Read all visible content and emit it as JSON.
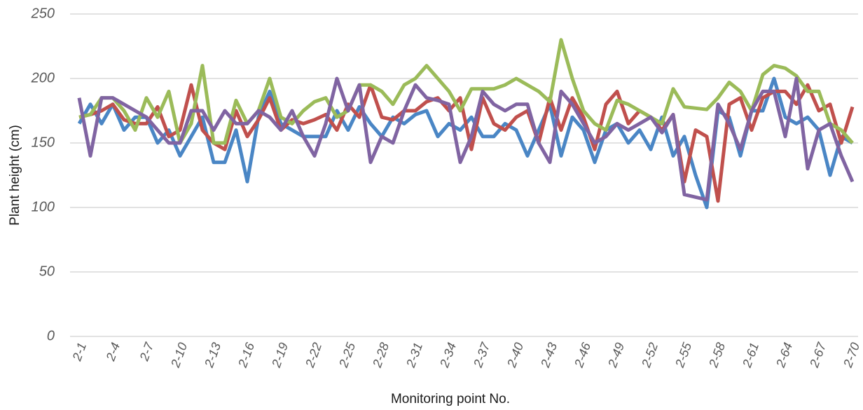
{
  "chart_data": {
    "type": "line",
    "y_label": "Plant height (cm)",
    "x_label": "Monitoring point No.",
    "categories": [
      "2-1",
      null,
      null,
      "2-4",
      null,
      null,
      "2-7",
      null,
      null,
      "2-10",
      null,
      null,
      "2-13",
      null,
      null,
      "2-16",
      null,
      null,
      "2-19",
      null,
      null,
      "2-22",
      null,
      null,
      "2-25",
      null,
      null,
      "2-28",
      null,
      null,
      "2-31",
      null,
      null,
      "2-34",
      null,
      null,
      "2-37",
      null,
      null,
      "2-40",
      null,
      null,
      "2-43",
      null,
      null,
      "2-46",
      null,
      null,
      "2-49",
      null,
      null,
      "2-52",
      null,
      null,
      "2-55",
      null,
      null,
      "2-58",
      null,
      null,
      "2-61",
      null,
      null,
      "2-64",
      null,
      null,
      "2-67",
      null,
      null,
      "2-70"
    ],
    "series": [
      {
        "color": "#4a86c5",
        "values": [
          165,
          180,
          165,
          180,
          160,
          170,
          170,
          150,
          160,
          140,
          155,
          170,
          135,
          135,
          160,
          120,
          170,
          190,
          165,
          160,
          155,
          155,
          155,
          175,
          160,
          178,
          165,
          155,
          170,
          165,
          172,
          175,
          155,
          165,
          160,
          170,
          155,
          155,
          165,
          160,
          140,
          160,
          180,
          140,
          170,
          160,
          135,
          160,
          165,
          150,
          160,
          145,
          170,
          140,
          155,
          125,
          100,
          175,
          170,
          140,
          175,
          175,
          200,
          170,
          165,
          170,
          160,
          125,
          155,
          150
        ]
      },
      {
        "color": "#c0504d",
        "values": [
          170,
          172,
          175,
          180,
          168,
          165,
          165,
          178,
          155,
          160,
          195,
          160,
          150,
          145,
          175,
          155,
          168,
          185,
          160,
          168,
          165,
          168,
          172,
          160,
          180,
          170,
          195,
          170,
          168,
          175,
          175,
          182,
          185,
          175,
          185,
          145,
          185,
          165,
          160,
          170,
          175,
          150,
          185,
          160,
          185,
          170,
          145,
          180,
          190,
          165,
          175,
          170,
          160,
          172,
          120,
          160,
          155,
          105,
          180,
          185,
          160,
          185,
          190,
          190,
          180,
          195,
          175,
          180,
          150,
          178
        ]
      },
      {
        "color": "#9bbb59",
        "values": [
          170,
          172,
          185,
          185,
          175,
          160,
          185,
          170,
          190,
          150,
          165,
          210,
          150,
          150,
          183,
          165,
          175,
          200,
          170,
          165,
          175,
          182,
          185,
          170,
          175,
          195,
          195,
          190,
          180,
          195,
          200,
          210,
          200,
          190,
          175,
          192,
          192,
          192,
          195,
          200,
          195,
          190,
          182,
          230,
          200,
          175,
          165,
          160,
          183,
          180,
          175,
          170,
          165,
          192,
          178,
          177,
          176,
          185,
          197,
          190,
          175,
          203,
          210,
          208,
          202,
          190,
          190,
          165,
          160,
          150
        ]
      },
      {
        "color": "#8064a2",
        "values": [
          185,
          140,
          185,
          185,
          180,
          175,
          170,
          160,
          150,
          150,
          175,
          175,
          160,
          175,
          165,
          165,
          175,
          170,
          160,
          175,
          155,
          140,
          165,
          200,
          175,
          195,
          135,
          155,
          150,
          175,
          195,
          185,
          183,
          180,
          135,
          155,
          190,
          180,
          175,
          180,
          180,
          150,
          135,
          190,
          180,
          165,
          150,
          155,
          165,
          160,
          165,
          170,
          158,
          172,
          110,
          108,
          106,
          180,
          165,
          145,
          175,
          190,
          190,
          155,
          200,
          130,
          160,
          165,
          140,
          120
        ]
      }
    ],
    "ylim": [
      0,
      250
    ],
    "yticks": [
      0,
      50,
      100,
      150,
      200,
      250
    ],
    "grid": true
  }
}
